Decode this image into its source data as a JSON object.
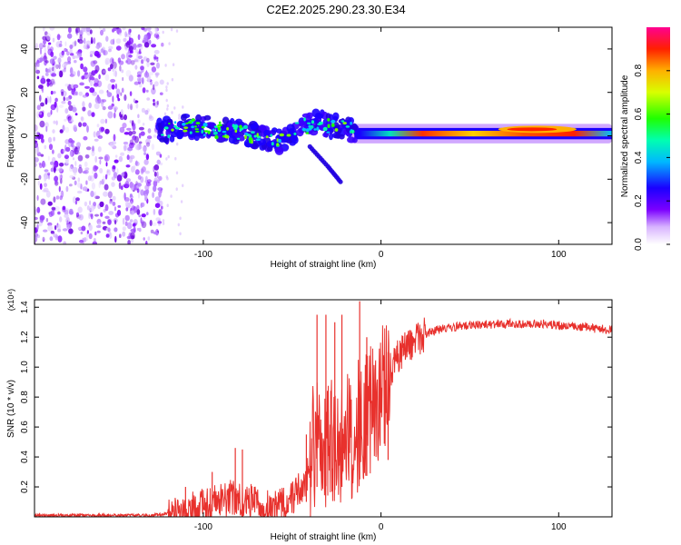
{
  "title": "C2E2.2025.290.23.30.E34",
  "chart_data": [
    {
      "type": "heatmap",
      "title": "",
      "xlabel": "Height of straight line (km)",
      "ylabel": "Frequency (Hz)",
      "xlim": [
        -195,
        130
      ],
      "ylim": [
        -50,
        50
      ],
      "xticks": [
        -100,
        0,
        100
      ],
      "yticks": [
        -40,
        -20,
        0,
        20,
        40
      ],
      "noise_region_x": [
        -195,
        -123
      ],
      "signal": {
        "center_freq": [
          {
            "x": -125,
            "y": 2
          },
          {
            "x": -110,
            "y": 5
          },
          {
            "x": -95,
            "y": 3
          },
          {
            "x": -80,
            "y": 2
          },
          {
            "x": -65,
            "y": -1
          },
          {
            "x": -55,
            "y": -3
          },
          {
            "x": -45,
            "y": 4
          },
          {
            "x": -35,
            "y": 6
          },
          {
            "x": -25,
            "y": 4
          },
          {
            "x": -15,
            "y": 2
          },
          {
            "x": 0,
            "y": 1
          },
          {
            "x": 50,
            "y": 1
          },
          {
            "x": 90,
            "y": 3
          },
          {
            "x": 100,
            "y": 1
          },
          {
            "x": 130,
            "y": 2
          }
        ],
        "branch": [
          {
            "x": -40,
            "y": -5
          },
          {
            "x": -30,
            "y": -14
          },
          {
            "x": -22,
            "y": -22
          }
        ]
      },
      "colorbar": {
        "label": "Normalized spectral amplitude",
        "range": [
          0,
          1
        ],
        "ticks": [
          0.0,
          0.2,
          0.4,
          0.6,
          0.8
        ]
      }
    },
    {
      "type": "line",
      "title": "",
      "xlabel": "Height of straight line (km)",
      "ylabel": "SNR (10 * v/v)",
      "scale_label": "(x10⁴)",
      "xlim": [
        -195,
        130
      ],
      "ylim": [
        0,
        1.45
      ],
      "xticks": [
        -100,
        0,
        100
      ],
      "yticks": [
        0.2,
        0.4,
        0.6,
        0.8,
        1.0,
        1.2,
        1.4
      ],
      "series": [
        {
          "name": "SNR",
          "color": "#e8312d",
          "x": [
            -195,
            -130,
            -120,
            -105,
            -95,
            -85,
            -75,
            -65,
            -55,
            -48,
            -42,
            -38,
            -34,
            -30,
            -26,
            -22,
            -18,
            -14,
            -10,
            -6,
            -2,
            2,
            8,
            15,
            25,
            35,
            50,
            70,
            90,
            110,
            130
          ],
          "y": [
            0.01,
            0.01,
            0.02,
            0.05,
            0.09,
            0.13,
            0.11,
            0.06,
            0.09,
            0.15,
            0.25,
            0.45,
            0.55,
            0.5,
            0.45,
            0.5,
            0.55,
            0.6,
            0.65,
            0.72,
            0.8,
            0.9,
            1.05,
            1.15,
            1.22,
            1.26,
            1.28,
            1.29,
            1.29,
            1.27,
            1.25
          ],
          "spikes": [
            {
              "x": -110,
              "y": 0.2
            },
            {
              "x": -95,
              "y": 0.3
            },
            {
              "x": -82,
              "y": 0.46
            },
            {
              "x": -78,
              "y": 0.45
            },
            {
              "x": -42,
              "y": 0.55
            },
            {
              "x": -36,
              "y": 1.35
            },
            {
              "x": -31,
              "y": 1.35
            },
            {
              "x": -26,
              "y": 1.3
            },
            {
              "x": -22,
              "y": 1.35
            },
            {
              "x": -12,
              "y": 1.44
            },
            {
              "x": -8,
              "y": 1.2
            },
            {
              "x": 4,
              "y": 1.1
            }
          ]
        }
      ]
    }
  ]
}
